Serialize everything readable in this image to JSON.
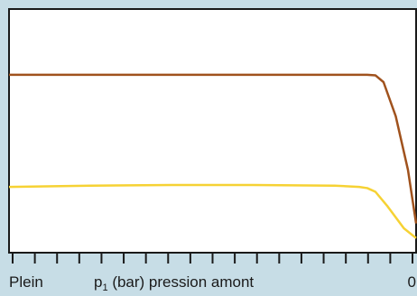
{
  "chart_data": {
    "type": "line",
    "title": "",
    "xlabel_left": "Plein",
    "xlabel_right": "0",
    "xlabel_main_prefix": "p",
    "xlabel_main_sub": "1",
    "xlabel_main_suffix": " (bar) pression amont",
    "ylabel": "",
    "xlim": [
      0,
      1
    ],
    "ylim": [
      0,
      1
    ],
    "grid": false,
    "legend": "none",
    "series": [
      {
        "color": "#a0521d",
        "x": [
          0,
          0.2,
          0.4,
          0.6,
          0.8,
          0.88,
          0.9,
          0.92,
          0.95,
          0.98,
          1.0
        ],
        "y": [
          0.73,
          0.73,
          0.73,
          0.73,
          0.73,
          0.73,
          0.728,
          0.7,
          0.56,
          0.34,
          0.12
        ]
      },
      {
        "color": "#f6d234",
        "x": [
          0,
          0.2,
          0.4,
          0.6,
          0.8,
          0.86,
          0.88,
          0.9,
          0.93,
          0.97,
          1.0
        ],
        "y": [
          0.27,
          0.275,
          0.278,
          0.278,
          0.275,
          0.27,
          0.265,
          0.25,
          0.19,
          0.1,
          0.06
        ]
      }
    ]
  }
}
